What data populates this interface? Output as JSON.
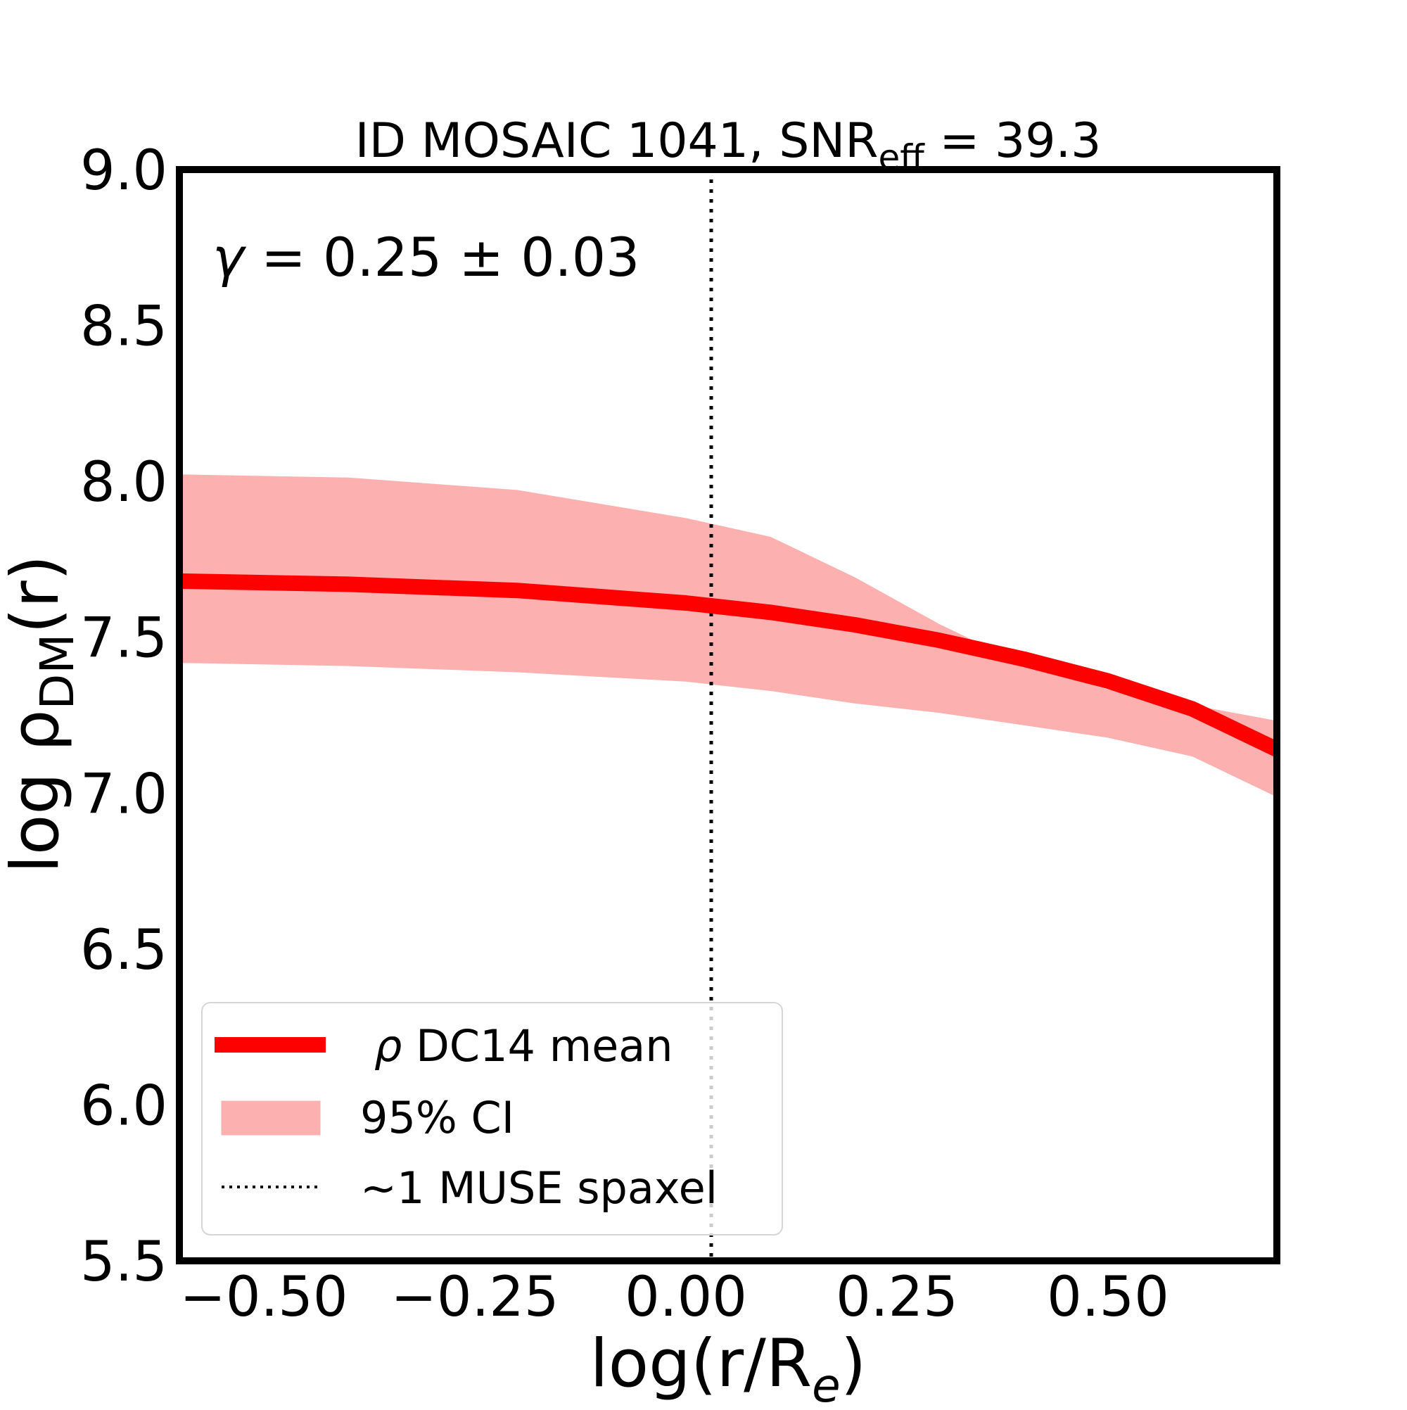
{
  "chart_data": {
    "type": "line",
    "title": {
      "prefix": "ID MOSAIC 1041, SNR",
      "subscript": "eff",
      "suffix": " = 39.3"
    },
    "xlabel": {
      "text": "log(r/R",
      "subscript": "e",
      "suffix": ")"
    },
    "ylabel": {
      "prefix": "log ρ",
      "subscript": "DM",
      "suffix": "(r)"
    },
    "xlim": [
      -0.6,
      0.7
    ],
    "ylim": [
      5.5,
      9.0
    ],
    "x_ticks": [
      -0.5,
      -0.25,
      0.0,
      0.25,
      0.5
    ],
    "x_tick_labels": [
      "−0.50",
      "−0.25",
      "0.00",
      "0.25",
      "0.50"
    ],
    "y_ticks": [
      5.5,
      6.0,
      6.5,
      7.0,
      7.5,
      8.0,
      8.5,
      9.0
    ],
    "y_tick_labels": [
      "5.5",
      "6.0",
      "6.5",
      "7.0",
      "7.5",
      "8.0",
      "8.5",
      "9.0"
    ],
    "series": [
      {
        "name": "mean",
        "label_symbol": "ρ",
        "label": " DC14 mean",
        "color": "#ff0000",
        "x": [
          -0.6,
          -0.4,
          -0.2,
          0.0,
          0.1,
          0.2,
          0.3,
          0.4,
          0.5,
          0.6,
          0.7
        ],
        "y": [
          7.68,
          7.67,
          7.65,
          7.61,
          7.58,
          7.54,
          7.49,
          7.43,
          7.36,
          7.27,
          7.14
        ]
      }
    ],
    "band": {
      "name": "ci95",
      "label": "95% CI",
      "color": "#fcb0b0",
      "x": [
        -0.6,
        -0.4,
        -0.2,
        0.0,
        0.1,
        0.2,
        0.3,
        0.4,
        0.5,
        0.6,
        0.7
      ],
      "lower": [
        7.42,
        7.41,
        7.39,
        7.36,
        7.33,
        7.29,
        7.26,
        7.22,
        7.18,
        7.12,
        6.99
      ],
      "upper": [
        8.02,
        8.01,
        7.97,
        7.88,
        7.82,
        7.69,
        7.54,
        7.41,
        7.33,
        7.28,
        7.23
      ]
    },
    "vline": {
      "x": 0.03,
      "label": "~1 MUSE spaxel",
      "style": "dotted",
      "color": "#000000"
    },
    "annotation": {
      "symbol": "γ",
      "text": " = 0.25 ± 0.03",
      "position": "top-left"
    },
    "legend": {
      "position": "lower-left"
    }
  }
}
